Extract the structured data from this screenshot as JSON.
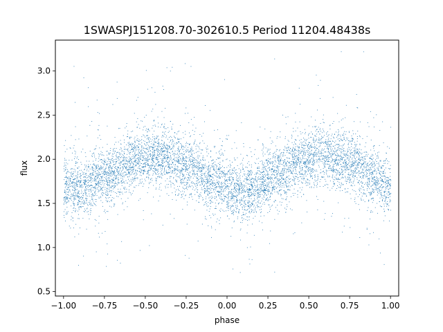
{
  "chart_data": {
    "type": "scatter",
    "title": "1SWASPJ151208.70-302610.5 Period 11204.48438s",
    "xlabel": "phase",
    "ylabel": "flux",
    "xlim": [
      -1.05,
      1.05
    ],
    "ylim": [
      0.45,
      3.35
    ],
    "x_ticks": [
      -1.0,
      -0.75,
      -0.5,
      -0.25,
      0.0,
      0.25,
      0.5,
      0.75,
      1.0
    ],
    "x_tick_labels": [
      "−1.00",
      "−0.75",
      "−0.50",
      "−0.25",
      "0.00",
      "0.25",
      "0.50",
      "0.75",
      "1.00"
    ],
    "y_ticks": [
      0.5,
      1.0,
      1.5,
      2.0,
      2.5,
      3.0
    ],
    "y_tick_labels": [
      "0.5",
      "1.0",
      "1.5",
      "2.0",
      "2.5",
      "3.0"
    ],
    "grid": false,
    "legend": "none",
    "marker_color": "#1f77b4",
    "series": [
      {
        "x_range": [
          -1.0,
          1.0
        ],
        "profile": [
          {
            "x": -1.0,
            "y": 1.7
          },
          {
            "x": -0.9,
            "y": 1.68
          },
          {
            "x": -0.75,
            "y": 1.8
          },
          {
            "x": -0.55,
            "y": 2.01
          },
          {
            "x": -0.4,
            "y": 2.03
          },
          {
            "x": -0.25,
            "y": 1.95
          },
          {
            "x": -0.1,
            "y": 1.76
          },
          {
            "x": 0.05,
            "y": 1.65
          },
          {
            "x": 0.15,
            "y": 1.66
          },
          {
            "x": 0.3,
            "y": 1.82
          },
          {
            "x": 0.45,
            "y": 1.99
          },
          {
            "x": 0.6,
            "y": 2.05
          },
          {
            "x": 0.75,
            "y": 1.97
          },
          {
            "x": 0.9,
            "y": 1.8
          },
          {
            "x": 1.0,
            "y": 1.7
          }
        ],
        "typical_scatter": 0.17,
        "y_extent": [
          0.55,
          3.25
        ]
      }
    ]
  }
}
